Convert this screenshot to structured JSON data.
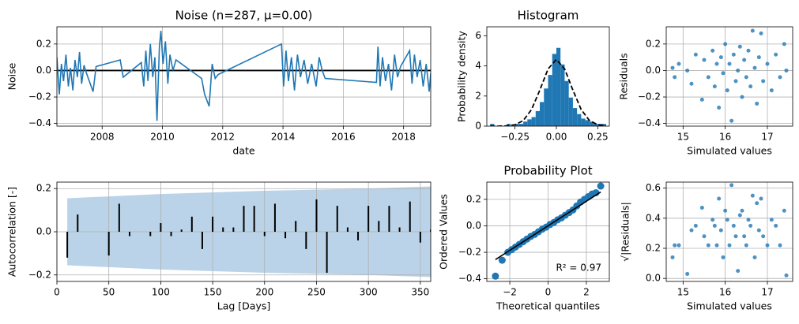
{
  "chart_data": [
    {
      "type": "line",
      "title": "Noise (n=287, μ=0.00)",
      "xlabel": "date",
      "ylabel": "Noise",
      "color": "#1f77b4",
      "x": [
        2006.5,
        2006.58,
        2006.65,
        2006.72,
        2006.8,
        2006.88,
        2006.95,
        2007.03,
        2007.1,
        2007.18,
        2007.25,
        2007.32,
        2007.4,
        2007.48,
        2007.7,
        2007.8,
        2008.6,
        2008.7,
        2009.3,
        2009.38,
        2009.45,
        2009.52,
        2009.6,
        2009.68,
        2009.75,
        2009.82,
        2009.9,
        2009.95,
        2010.02,
        2010.1,
        2010.18,
        2010.25,
        2010.35,
        2010.45,
        2011.3,
        2011.4,
        2011.55,
        2011.65,
        2011.75,
        2011.85,
        2013.95,
        2014.02,
        2014.1,
        2014.18,
        2014.28,
        2014.38,
        2014.48,
        2014.58,
        2014.7,
        2014.82,
        2014.95,
        2015.1,
        2015.2,
        2015.3,
        2015.4,
        2017.1,
        2017.15,
        2017.22,
        2017.3,
        2017.4,
        2017.5,
        2017.6,
        2017.7,
        2017.8,
        2017.9,
        2018.2,
        2018.28,
        2018.36,
        2018.45,
        2018.55,
        2018.65,
        2018.75,
        2018.85,
        2018.9
      ],
      "values": [
        0.1,
        -0.18,
        0.05,
        -0.08,
        0.12,
        -0.12,
        0.02,
        -0.15,
        0.08,
        -0.05,
        0.14,
        -0.1,
        0.04,
        -0.02,
        -0.16,
        0.03,
        0.08,
        -0.05,
        0.06,
        -0.12,
        0.15,
        -0.08,
        0.2,
        -0.05,
        0.1,
        -0.38,
        0.18,
        0.3,
        0.05,
        0.22,
        -0.1,
        0.12,
        0.0,
        0.08,
        -0.06,
        -0.18,
        -0.27,
        0.05,
        -0.06,
        -0.03,
        0.2,
        -0.12,
        0.15,
        -0.08,
        0.1,
        -0.15,
        0.12,
        -0.05,
        0.08,
        -0.1,
        0.05,
        -0.12,
        0.1,
        0.0,
        -0.06,
        -0.09,
        0.18,
        -0.12,
        0.1,
        -0.08,
        0.05,
        -0.15,
        0.12,
        -0.05,
        0.03,
        0.15,
        -0.1,
        0.12,
        -0.05,
        0.08,
        -0.12,
        0.05,
        -0.16,
        -0.02
      ],
      "hline": 0,
      "xlim": [
        2006.5,
        2018.9
      ],
      "ylim": [
        -0.42,
        0.33
      ],
      "xticks": [
        2008,
        2010,
        2012,
        2014,
        2016,
        2018
      ],
      "yticks": [
        {
          "value": -0.4,
          "label": "−0.4"
        },
        {
          "value": -0.2,
          "label": "−0.2"
        },
        {
          "value": 0,
          "label": "0.0"
        },
        0.2
      ],
      "grid": true
    },
    {
      "type": "histogram",
      "title": "Histogram",
      "ylabel": "Probability density",
      "color": "#1f77b4",
      "bins": [
        -0.4,
        -0.375,
        -0.35,
        -0.325,
        -0.3,
        -0.275,
        -0.25,
        -0.225,
        -0.2,
        -0.175,
        -0.15,
        -0.125,
        -0.1,
        -0.075,
        -0.05,
        -0.025,
        0,
        0.025,
        0.05,
        0.075,
        0.1,
        0.125,
        0.15,
        0.175,
        0.2,
        0.225,
        0.25,
        0.275,
        0.3
      ],
      "values": [
        0.15,
        0,
        0,
        0,
        0.15,
        0,
        0.15,
        0.15,
        0.3,
        0.45,
        0.6,
        1.0,
        1.6,
        2.5,
        3.4,
        4.8,
        5.2,
        4.1,
        3.0,
        1.9,
        1.2,
        0.8,
        0.5,
        0.4,
        0.3,
        0.15,
        0.15,
        0.15
      ],
      "curve": {
        "x": [
          -0.4,
          -0.35,
          -0.3,
          -0.25,
          -0.2,
          -0.15,
          -0.1,
          -0.05,
          0,
          0.05,
          0.1,
          0.15,
          0.2,
          0.25,
          0.3
        ],
        "y": [
          0,
          0,
          0.02,
          0.09,
          0.37,
          1.1,
          2.39,
          3.8,
          4.43,
          3.8,
          2.39,
          1.1,
          0.37,
          0.09,
          0.02
        ]
      },
      "xlim": [
        -0.42,
        0.32
      ],
      "ylim": [
        0,
        6.6
      ],
      "xticks": [
        {
          "value": -0.25,
          "label": "−0.25"
        },
        {
          "value": 0,
          "label": "0.00"
        },
        {
          "value": 0.25,
          "label": "0.25"
        }
      ],
      "yticks": [
        0,
        2,
        4,
        6
      ],
      "grid": false
    },
    {
      "type": "scatter",
      "xlabel": "Simulated values",
      "ylabel": "Residuals",
      "color": "#1f77b4",
      "x": [
        14.75,
        14.8,
        14.9,
        15.1,
        15.2,
        15.3,
        15.45,
        15.5,
        15.6,
        15.7,
        15.75,
        15.8,
        15.85,
        15.9,
        15.95,
        16.0,
        16.05,
        16.1,
        16.15,
        16.2,
        16.25,
        16.3,
        16.35,
        16.4,
        16.45,
        16.5,
        16.55,
        16.6,
        16.65,
        16.7,
        16.75,
        16.8,
        16.85,
        16.9,
        17.0,
        17.1,
        17.2,
        17.3,
        17.4,
        17.45
      ],
      "values": [
        0.02,
        -0.05,
        0.05,
        0.0,
        -0.1,
        0.12,
        -0.22,
        0.08,
        -0.05,
        0.15,
        -0.12,
        0.05,
        -0.28,
        0.1,
        -0.02,
        0.2,
        -0.15,
        0.05,
        -0.38,
        0.12,
        -0.08,
        0.0,
        0.18,
        -0.2,
        0.08,
        -0.05,
        0.15,
        -0.12,
        0.3,
        0.02,
        -0.25,
        0.1,
        0.28,
        -0.08,
        0.05,
        -0.15,
        0.12,
        -0.05,
        0.2,
        0.0
      ],
      "xlim": [
        14.6,
        17.6
      ],
      "ylim": [
        -0.42,
        0.33
      ],
      "xticks": [
        15,
        16,
        17
      ],
      "yticks": [
        {
          "value": -0.4,
          "label": "−0.4"
        },
        {
          "value": -0.2,
          "label": "−0.2"
        },
        {
          "value": 0,
          "label": "0.0"
        },
        0.2
      ],
      "grid": true
    },
    {
      "type": "stem",
      "xlabel": "Lag [Days]",
      "ylabel": "Autocorrelation [-]",
      "color": "#000000",
      "band_color": "#bad3e8",
      "x": [
        10,
        20,
        30,
        40,
        50,
        60,
        70,
        80,
        90,
        100,
        110,
        120,
        130,
        140,
        150,
        160,
        170,
        180,
        190,
        200,
        210,
        220,
        230,
        240,
        250,
        260,
        270,
        280,
        290,
        300,
        310,
        320,
        330,
        340,
        350,
        360
      ],
      "values": [
        -0.12,
        0.08,
        0.0,
        0.0,
        -0.11,
        0.13,
        -0.02,
        0.0,
        -0.02,
        0.04,
        -0.02,
        0.01,
        0.07,
        -0.08,
        0.07,
        0.02,
        0.02,
        0.12,
        0.12,
        -0.02,
        0.13,
        -0.03,
        0.05,
        -0.08,
        0.15,
        -0.19,
        0.12,
        0.02,
        -0.04,
        0.12,
        0.05,
        0.12,
        0.02,
        0.14,
        -0.05,
        0.01
      ],
      "band_x": [
        10,
        100,
        200,
        300,
        360
      ],
      "band_upper": [
        0.155,
        0.175,
        0.19,
        0.2,
        0.21
      ],
      "band_lower": [
        -0.155,
        -0.175,
        -0.19,
        -0.2,
        -0.21
      ],
      "xlim": [
        0,
        360
      ],
      "ylim": [
        -0.23,
        0.23
      ],
      "xticks": [
        0,
        50,
        100,
        150,
        200,
        250,
        300,
        350
      ],
      "yticks": [
        {
          "value": -0.2,
          "label": "−0.2"
        },
        {
          "value": 0,
          "label": "0.0"
        },
        0.2
      ],
      "grid": true
    },
    {
      "type": "probplot",
      "title": "Probability Plot",
      "xlabel": "Theoretical quantiles",
      "ylabel": "Ordered Values",
      "color": "#1f77b4",
      "annotation": "R² = 0.97",
      "x": [
        -2.75,
        -2.4,
        -2.1,
        -1.9,
        -1.7,
        -1.5,
        -1.3,
        -1.1,
        -0.9,
        -0.7,
        -0.5,
        -0.3,
        -0.1,
        0.1,
        0.3,
        0.5,
        0.7,
        0.9,
        1.1,
        1.3,
        1.5,
        1.7,
        1.9,
        2.1,
        2.3,
        2.5,
        2.75
      ],
      "values": [
        -0.38,
        -0.26,
        -0.2,
        -0.18,
        -0.16,
        -0.14,
        -0.12,
        -0.1,
        -0.08,
        -0.065,
        -0.045,
        -0.025,
        -0.01,
        0.01,
        0.025,
        0.045,
        0.06,
        0.08,
        0.1,
        0.12,
        0.15,
        0.18,
        0.2,
        0.22,
        0.24,
        0.25,
        0.3
      ],
      "fit_x": [
        -2.75,
        2.75
      ],
      "fit_y": [
        -0.255,
        0.255
      ],
      "xlim": [
        -3.2,
        3.2
      ],
      "ylim": [
        -0.42,
        0.33
      ],
      "xticks": [
        {
          "value": -2,
          "label": "−2"
        },
        0,
        2
      ],
      "yticks": [
        {
          "value": -0.4,
          "label": "−0.4"
        },
        {
          "value": -0.2,
          "label": "−0.2"
        },
        {
          "value": 0,
          "label": "0.0"
        },
        0.2
      ],
      "grid": true
    },
    {
      "type": "scatter",
      "xlabel": "Simulated values",
      "ylabel": "√|Residuals|",
      "color": "#1f77b4",
      "x": [
        14.75,
        14.8,
        14.9,
        15.1,
        15.2,
        15.3,
        15.45,
        15.5,
        15.6,
        15.7,
        15.75,
        15.8,
        15.85,
        15.9,
        15.95,
        16.0,
        16.05,
        16.1,
        16.15,
        16.2,
        16.25,
        16.3,
        16.35,
        16.4,
        16.45,
        16.5,
        16.55,
        16.6,
        16.65,
        16.7,
        16.75,
        16.8,
        16.85,
        16.9,
        17.0,
        17.1,
        17.2,
        17.3,
        17.4,
        17.45
      ],
      "values": [
        0.14,
        0.22,
        0.22,
        0.03,
        0.32,
        0.35,
        0.47,
        0.28,
        0.22,
        0.39,
        0.35,
        0.22,
        0.53,
        0.32,
        0.14,
        0.45,
        0.39,
        0.22,
        0.62,
        0.35,
        0.28,
        0.05,
        0.42,
        0.45,
        0.28,
        0.22,
        0.39,
        0.35,
        0.55,
        0.14,
        0.5,
        0.32,
        0.53,
        0.28,
        0.22,
        0.39,
        0.35,
        0.22,
        0.45,
        0.02
      ],
      "xlim": [
        14.6,
        17.6
      ],
      "ylim": [
        -0.02,
        0.64
      ],
      "xticks": [
        15,
        16,
        17
      ],
      "yticks": [
        {
          "value": 0,
          "label": "0.0"
        },
        0.2,
        0.4,
        0.6
      ],
      "grid": true
    }
  ]
}
